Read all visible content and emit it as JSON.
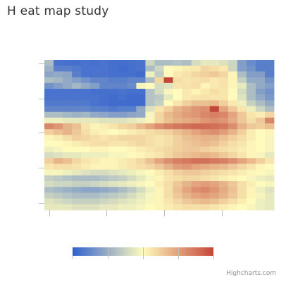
{
  "title": "H eat map study",
  "credits": "Highcharts.com",
  "colors": {
    "scale": [
      "#3060cf",
      "#fffbbc",
      "#c4463a"
    ],
    "axis_line": "#c0c0c0",
    "title": "#333333",
    "credits": "#909090"
  },
  "chart_data": {
    "type": "heatmap",
    "title": "H eat map study",
    "x_ticks": 4,
    "y_ticks": 5,
    "columns": 25,
    "legend": {
      "type": "color-axis",
      "placement": "bottom-center",
      "tick_count": 5,
      "range": [
        0,
        1
      ]
    },
    "values": [
      [
        0.3,
        0.06,
        0.05,
        0.05,
        0.06,
        0.05,
        0.06,
        0.05,
        0.05,
        0.05,
        0.06,
        0.38,
        0.3,
        0.3,
        0.32,
        0.3,
        0.4,
        0.44,
        0.44,
        0.42,
        0.38,
        0.2,
        0.14,
        0.1,
        0.1
      ],
      [
        0.26,
        0.1,
        0.1,
        0.08,
        0.06,
        0.06,
        0.06,
        0.05,
        0.04,
        0.05,
        0.06,
        0.3,
        0.38,
        0.5,
        0.52,
        0.54,
        0.55,
        0.6,
        0.58,
        0.55,
        0.38,
        0.2,
        0.16,
        0.1,
        0.1
      ],
      [
        0.22,
        0.24,
        0.22,
        0.1,
        0.06,
        0.06,
        0.06,
        0.05,
        0.05,
        0.05,
        0.04,
        0.46,
        0.35,
        0.5,
        0.55,
        0.57,
        0.6,
        0.62,
        0.64,
        0.6,
        0.52,
        0.3,
        0.2,
        0.2,
        0.1
      ],
      [
        0.3,
        0.28,
        0.24,
        0.2,
        0.16,
        0.12,
        0.12,
        0.1,
        0.1,
        0.12,
        0.12,
        0.3,
        0.6,
        1.0,
        0.58,
        0.56,
        0.57,
        0.58,
        0.55,
        0.57,
        0.52,
        0.36,
        0.24,
        0.24,
        0.16
      ],
      [
        0.16,
        0.2,
        0.24,
        0.28,
        0.24,
        0.2,
        0.12,
        0.12,
        0.12,
        0.14,
        0.48,
        0.5,
        0.4,
        0.42,
        0.56,
        0.57,
        0.58,
        0.52,
        0.55,
        0.57,
        0.52,
        0.44,
        0.3,
        0.24,
        0.2
      ],
      [
        0.06,
        0.06,
        0.06,
        0.06,
        0.06,
        0.05,
        0.05,
        0.05,
        0.06,
        0.05,
        0.05,
        0.32,
        0.4,
        0.48,
        0.5,
        0.55,
        0.52,
        0.55,
        0.58,
        0.56,
        0.5,
        0.4,
        0.3,
        0.2,
        0.16
      ],
      [
        0.06,
        0.06,
        0.06,
        0.06,
        0.06,
        0.06,
        0.05,
        0.04,
        0.05,
        0.04,
        0.04,
        0.32,
        0.34,
        0.44,
        0.5,
        0.55,
        0.56,
        0.57,
        0.56,
        0.56,
        0.5,
        0.42,
        0.3,
        0.24,
        0.18
      ],
      [
        0.08,
        0.08,
        0.08,
        0.08,
        0.08,
        0.06,
        0.05,
        0.04,
        0.04,
        0.04,
        0.04,
        0.32,
        0.36,
        0.5,
        0.56,
        0.62,
        0.66,
        0.66,
        0.68,
        0.62,
        0.55,
        0.46,
        0.36,
        0.3,
        0.24
      ],
      [
        0.12,
        0.12,
        0.12,
        0.12,
        0.12,
        0.1,
        0.1,
        0.08,
        0.1,
        0.1,
        0.24,
        0.42,
        0.56,
        0.62,
        0.7,
        0.74,
        0.78,
        0.8,
        1.0,
        0.74,
        0.64,
        0.56,
        0.46,
        0.38,
        0.3
      ],
      [
        0.3,
        0.3,
        0.28,
        0.26,
        0.28,
        0.24,
        0.22,
        0.2,
        0.2,
        0.22,
        0.24,
        0.48,
        0.6,
        0.68,
        0.72,
        0.76,
        0.78,
        0.82,
        0.84,
        0.82,
        0.74,
        0.64,
        0.56,
        0.54,
        0.6
      ],
      [
        0.46,
        0.46,
        0.44,
        0.44,
        0.44,
        0.44,
        0.42,
        0.42,
        0.42,
        0.44,
        0.46,
        0.52,
        0.6,
        0.66,
        0.7,
        0.72,
        0.74,
        0.78,
        0.8,
        0.78,
        0.72,
        0.64,
        0.58,
        0.64,
        0.82
      ],
      [
        0.82,
        0.78,
        0.7,
        0.66,
        0.56,
        0.52,
        0.54,
        0.56,
        0.6,
        0.62,
        0.68,
        0.74,
        0.8,
        0.84,
        0.86,
        0.88,
        0.9,
        0.9,
        0.88,
        0.86,
        0.8,
        0.7,
        0.64,
        0.62,
        0.66
      ],
      [
        0.62,
        0.66,
        0.7,
        0.64,
        0.58,
        0.54,
        0.52,
        0.5,
        0.52,
        0.54,
        0.56,
        0.58,
        0.6,
        0.62,
        0.66,
        0.7,
        0.74,
        0.78,
        0.8,
        0.76,
        0.7,
        0.62,
        0.54,
        0.5,
        0.52
      ],
      [
        0.52,
        0.54,
        0.58,
        0.62,
        0.6,
        0.58,
        0.56,
        0.58,
        0.6,
        0.6,
        0.6,
        0.58,
        0.56,
        0.58,
        0.62,
        0.66,
        0.68,
        0.7,
        0.7,
        0.66,
        0.62,
        0.58,
        0.54,
        0.5,
        0.48
      ],
      [
        0.5,
        0.5,
        0.52,
        0.54,
        0.56,
        0.58,
        0.58,
        0.56,
        0.56,
        0.58,
        0.6,
        0.58,
        0.56,
        0.58,
        0.62,
        0.64,
        0.66,
        0.68,
        0.66,
        0.62,
        0.58,
        0.56,
        0.52,
        0.5,
        0.48
      ],
      [
        0.46,
        0.48,
        0.5,
        0.5,
        0.5,
        0.52,
        0.52,
        0.5,
        0.5,
        0.52,
        0.54,
        0.56,
        0.58,
        0.6,
        0.62,
        0.64,
        0.64,
        0.62,
        0.6,
        0.58,
        0.56,
        0.54,
        0.52,
        0.5,
        0.48
      ],
      [
        0.4,
        0.42,
        0.44,
        0.44,
        0.46,
        0.46,
        0.46,
        0.48,
        0.48,
        0.5,
        0.52,
        0.54,
        0.56,
        0.6,
        0.64,
        0.66,
        0.68,
        0.7,
        0.68,
        0.64,
        0.6,
        0.56,
        0.52,
        0.48,
        0.44
      ],
      [
        0.62,
        0.7,
        0.66,
        0.6,
        0.56,
        0.54,
        0.52,
        0.52,
        0.54,
        0.56,
        0.6,
        0.66,
        0.74,
        0.8,
        0.84,
        0.86,
        0.88,
        0.88,
        0.86,
        0.84,
        0.8,
        0.74,
        0.68,
        0.62,
        0.56
      ],
      [
        0.56,
        0.58,
        0.58,
        0.56,
        0.54,
        0.52,
        0.52,
        0.52,
        0.54,
        0.56,
        0.58,
        0.6,
        0.64,
        0.7,
        0.76,
        0.78,
        0.74,
        0.72,
        0.7,
        0.68,
        0.64,
        0.6,
        0.56,
        0.52,
        0.5
      ],
      [
        0.48,
        0.48,
        0.46,
        0.44,
        0.42,
        0.4,
        0.4,
        0.42,
        0.44,
        0.46,
        0.48,
        0.5,
        0.54,
        0.58,
        0.62,
        0.64,
        0.64,
        0.62,
        0.6,
        0.58,
        0.56,
        0.54,
        0.52,
        0.5,
        0.48
      ],
      [
        0.36,
        0.34,
        0.32,
        0.3,
        0.3,
        0.3,
        0.32,
        0.34,
        0.36,
        0.4,
        0.44,
        0.48,
        0.52,
        0.56,
        0.58,
        0.6,
        0.6,
        0.58,
        0.56,
        0.54,
        0.52,
        0.5,
        0.48,
        0.46,
        0.44
      ],
      [
        0.4,
        0.38,
        0.38,
        0.36,
        0.36,
        0.38,
        0.4,
        0.42,
        0.44,
        0.46,
        0.48,
        0.5,
        0.54,
        0.58,
        0.64,
        0.7,
        0.74,
        0.76,
        0.74,
        0.7,
        0.64,
        0.58,
        0.54,
        0.5,
        0.48
      ],
      [
        0.3,
        0.28,
        0.26,
        0.24,
        0.22,
        0.22,
        0.24,
        0.26,
        0.3,
        0.34,
        0.4,
        0.46,
        0.52,
        0.58,
        0.66,
        0.74,
        0.8,
        0.82,
        0.78,
        0.72,
        0.66,
        0.58,
        0.52,
        0.46,
        0.42
      ],
      [
        0.36,
        0.34,
        0.32,
        0.3,
        0.3,
        0.3,
        0.32,
        0.34,
        0.36,
        0.4,
        0.44,
        0.48,
        0.52,
        0.58,
        0.64,
        0.7,
        0.74,
        0.76,
        0.74,
        0.7,
        0.64,
        0.58,
        0.52,
        0.48,
        0.44
      ],
      [
        0.42,
        0.4,
        0.38,
        0.36,
        0.36,
        0.36,
        0.38,
        0.4,
        0.42,
        0.44,
        0.46,
        0.48,
        0.52,
        0.56,
        0.6,
        0.64,
        0.66,
        0.68,
        0.66,
        0.62,
        0.58,
        0.54,
        0.5,
        0.46,
        0.44
      ],
      [
        0.44,
        0.44,
        0.44,
        0.42,
        0.42,
        0.42,
        0.44,
        0.44,
        0.46,
        0.46,
        0.48,
        0.5,
        0.52,
        0.54,
        0.56,
        0.58,
        0.58,
        0.58,
        0.56,
        0.54,
        0.52,
        0.5,
        0.48,
        0.46,
        0.44
      ]
    ]
  }
}
